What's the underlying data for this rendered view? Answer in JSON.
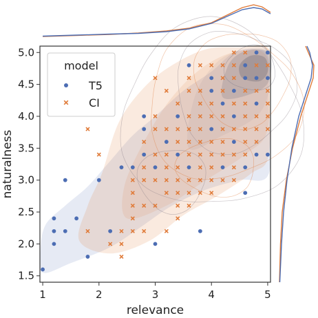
{
  "chart_data": {
    "type": "scatter",
    "xlabel": "relevance",
    "ylabel": "naturalness",
    "xlim": [
      0.95,
      5.05
    ],
    "ylim": [
      1.4,
      5.1
    ],
    "xticks": [
      "1",
      "2",
      "3",
      "4",
      "5"
    ],
    "xtick_values": [
      1,
      2,
      3,
      4,
      5
    ],
    "yticks": [
      "1.5",
      "2.0",
      "2.5",
      "3.0",
      "3.5",
      "4.0",
      "4.5",
      "5.0"
    ],
    "ytick_values": [
      1.5,
      2.0,
      2.5,
      3.0,
      3.5,
      4.0,
      4.5,
      5.0
    ],
    "legend": {
      "title": "model",
      "position": "top-left"
    },
    "marginal_plots": [
      "kde-top",
      "kde-right"
    ],
    "series": [
      {
        "name": "T5",
        "marker": "circle",
        "color": "#4c6db3",
        "points": [
          [
            1.0,
            1.6
          ],
          [
            1.2,
            2.0
          ],
          [
            1.2,
            2.2
          ],
          [
            1.2,
            2.4
          ],
          [
            1.4,
            3.0
          ],
          [
            1.4,
            2.2
          ],
          [
            1.6,
            2.4
          ],
          [
            1.8,
            1.8
          ],
          [
            2.0,
            3.0
          ],
          [
            2.2,
            2.2
          ],
          [
            2.4,
            3.2
          ],
          [
            2.6,
            3.2
          ],
          [
            2.8,
            3.4
          ],
          [
            2.8,
            3.8
          ],
          [
            2.8,
            4.0
          ],
          [
            3.0,
            2.0
          ],
          [
            3.0,
            3.2
          ],
          [
            3.2,
            3.6
          ],
          [
            3.4,
            3.4
          ],
          [
            3.4,
            4.0
          ],
          [
            3.6,
            3.2
          ],
          [
            3.6,
            4.8
          ],
          [
            3.8,
            2.2
          ],
          [
            4.0,
            3.8
          ],
          [
            4.0,
            4.4
          ],
          [
            4.0,
            4.6
          ],
          [
            4.2,
            3.2
          ],
          [
            4.2,
            4.2
          ],
          [
            4.4,
            3.6
          ],
          [
            4.4,
            4.0
          ],
          [
            4.4,
            4.4
          ],
          [
            4.6,
            2.8
          ],
          [
            4.6,
            3.2
          ],
          [
            4.6,
            4.6
          ],
          [
            4.6,
            4.8
          ],
          [
            4.8,
            3.4
          ],
          [
            4.8,
            4.2
          ],
          [
            4.8,
            4.6
          ],
          [
            4.8,
            5.0
          ],
          [
            5.0,
            3.4
          ],
          [
            5.0,
            4.6
          ],
          [
            5.0,
            5.0
          ]
        ]
      },
      {
        "name": "CI",
        "marker": "x",
        "color": "#e07b39",
        "points": [
          [
            1.8,
            3.8
          ],
          [
            1.8,
            2.2
          ],
          [
            2.0,
            3.4
          ],
          [
            2.2,
            2.0
          ],
          [
            2.4,
            1.8
          ],
          [
            2.4,
            2.0
          ],
          [
            2.4,
            2.2
          ],
          [
            2.6,
            2.2
          ],
          [
            2.6,
            2.4
          ],
          [
            2.6,
            2.6
          ],
          [
            2.6,
            2.8
          ],
          [
            2.6,
            3.0
          ],
          [
            2.8,
            2.2
          ],
          [
            2.8,
            2.6
          ],
          [
            2.8,
            3.0
          ],
          [
            2.8,
            3.2
          ],
          [
            2.8,
            3.6
          ],
          [
            3.0,
            2.6
          ],
          [
            3.0,
            3.0
          ],
          [
            3.0,
            3.4
          ],
          [
            3.0,
            3.8
          ],
          [
            3.0,
            4.0
          ],
          [
            3.0,
            4.6
          ],
          [
            3.2,
            2.2
          ],
          [
            3.2,
            2.8
          ],
          [
            3.2,
            3.0
          ],
          [
            3.2,
            3.2
          ],
          [
            3.2,
            3.4
          ],
          [
            3.2,
            3.8
          ],
          [
            3.2,
            4.4
          ],
          [
            3.4,
            2.4
          ],
          [
            3.4,
            2.6
          ],
          [
            3.4,
            2.8
          ],
          [
            3.4,
            3.0
          ],
          [
            3.4,
            3.2
          ],
          [
            3.4,
            3.6
          ],
          [
            3.4,
            3.8
          ],
          [
            3.4,
            4.2
          ],
          [
            3.6,
            2.6
          ],
          [
            3.6,
            2.8
          ],
          [
            3.6,
            3.0
          ],
          [
            3.6,
            3.4
          ],
          [
            3.6,
            3.6
          ],
          [
            3.6,
            3.8
          ],
          [
            3.6,
            4.0
          ],
          [
            3.6,
            4.4
          ],
          [
            3.6,
            4.6
          ],
          [
            3.8,
            2.8
          ],
          [
            3.8,
            3.0
          ],
          [
            3.8,
            3.2
          ],
          [
            3.8,
            3.4
          ],
          [
            3.8,
            3.6
          ],
          [
            3.8,
            3.8
          ],
          [
            3.8,
            4.0
          ],
          [
            3.8,
            4.2
          ],
          [
            3.8,
            4.4
          ],
          [
            3.8,
            4.8
          ],
          [
            4.0,
            2.8
          ],
          [
            4.0,
            3.0
          ],
          [
            4.0,
            3.2
          ],
          [
            4.0,
            3.4
          ],
          [
            4.0,
            3.6
          ],
          [
            4.0,
            4.0
          ],
          [
            4.0,
            4.2
          ],
          [
            4.0,
            4.8
          ],
          [
            4.2,
            3.0
          ],
          [
            4.2,
            3.4
          ],
          [
            4.2,
            3.6
          ],
          [
            4.2,
            3.8
          ],
          [
            4.2,
            4.0
          ],
          [
            4.2,
            4.4
          ],
          [
            4.2,
            4.6
          ],
          [
            4.2,
            4.8
          ],
          [
            4.4,
            3.0
          ],
          [
            4.4,
            3.2
          ],
          [
            4.4,
            3.4
          ],
          [
            4.4,
            3.8
          ],
          [
            4.4,
            4.2
          ],
          [
            4.4,
            4.6
          ],
          [
            4.4,
            4.8
          ],
          [
            4.4,
            5.0
          ],
          [
            4.6,
            3.4
          ],
          [
            4.6,
            3.6
          ],
          [
            4.6,
            3.8
          ],
          [
            4.6,
            4.0
          ],
          [
            4.6,
            4.2
          ],
          [
            4.6,
            4.4
          ],
          [
            4.6,
            5.0
          ],
          [
            4.8,
            3.6
          ],
          [
            4.8,
            3.8
          ],
          [
            4.8,
            4.0
          ],
          [
            4.8,
            4.4
          ],
          [
            4.8,
            4.8
          ],
          [
            5.0,
            3.8
          ],
          [
            5.0,
            4.0
          ],
          [
            5.0,
            4.2
          ],
          [
            5.0,
            4.4
          ],
          [
            5.0,
            4.8
          ]
        ]
      }
    ]
  }
}
